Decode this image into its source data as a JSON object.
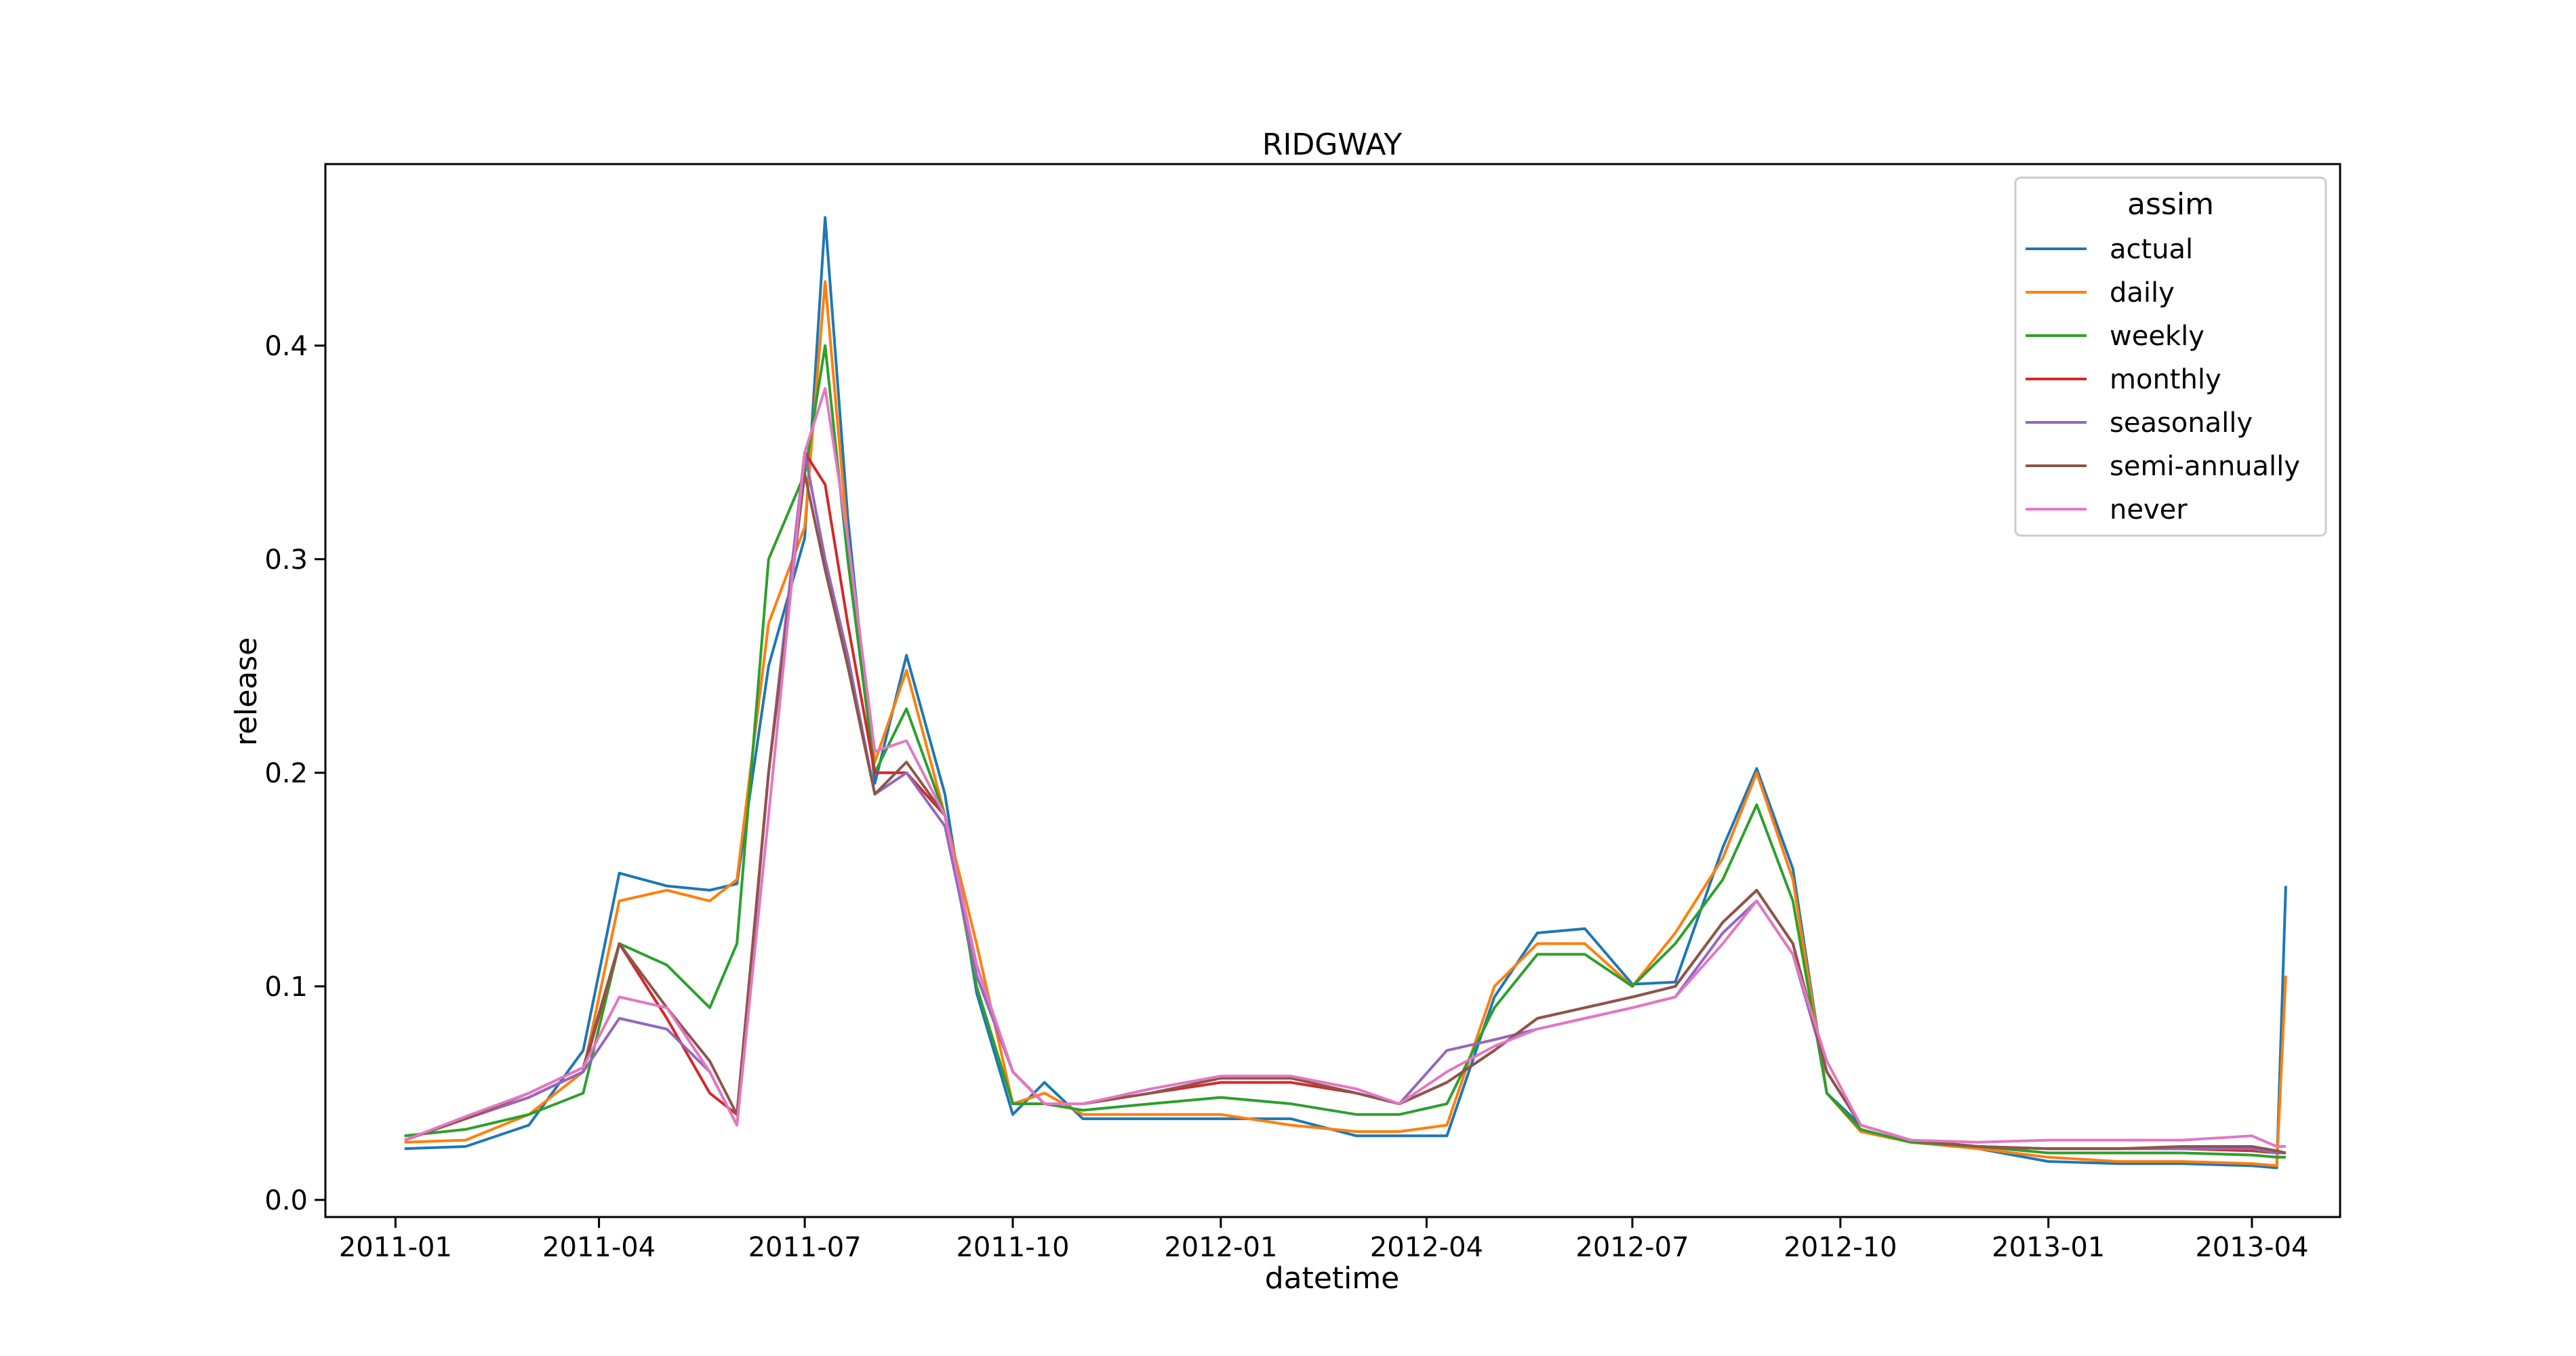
{
  "chart_data": {
    "type": "line",
    "title": "RIDGWAY",
    "xlabel": "datetime",
    "ylabel": "release",
    "xlim": [
      "2010-12-01",
      "2013-05-10"
    ],
    "ylim": [
      -0.008,
      0.485
    ],
    "x_ticks": [
      "2011-01",
      "2011-04",
      "2011-07",
      "2011-10",
      "2012-01",
      "2012-04",
      "2012-07",
      "2012-10",
      "2013-01",
      "2013-04"
    ],
    "y_ticks": [
      "0.0",
      "0.1",
      "0.2",
      "0.3",
      "0.4"
    ],
    "grid": false,
    "legend": {
      "title": "assim",
      "position": "top-right"
    },
    "x": [
      "2011-01-05",
      "2011-02-01",
      "2011-03-01",
      "2011-03-25",
      "2011-04-10",
      "2011-05-01",
      "2011-05-20",
      "2011-06-01",
      "2011-06-15",
      "2011-07-01",
      "2011-07-10",
      "2011-07-20",
      "2011-08-01",
      "2011-08-15",
      "2011-09-01",
      "2011-09-15",
      "2011-10-01",
      "2011-10-15",
      "2011-11-01",
      "2011-12-01",
      "2012-01-01",
      "2012-02-01",
      "2012-03-01",
      "2012-03-20",
      "2012-04-10",
      "2012-05-01",
      "2012-05-20",
      "2012-06-10",
      "2012-07-01",
      "2012-07-20",
      "2012-08-10",
      "2012-08-25",
      "2012-09-10",
      "2012-09-25",
      "2012-10-10",
      "2012-11-01",
      "2012-12-01",
      "2013-01-01",
      "2013-02-01",
      "2013-03-01",
      "2013-04-01",
      "2013-04-12",
      "2013-04-16"
    ],
    "series": [
      {
        "name": "actual",
        "color": "#1f77b4",
        "values": [
          0.024,
          0.025,
          0.035,
          0.07,
          0.153,
          0.147,
          0.145,
          0.148,
          0.25,
          0.31,
          0.46,
          0.32,
          0.195,
          0.255,
          0.19,
          0.097,
          0.04,
          0.055,
          0.038,
          0.038,
          0.038,
          0.038,
          0.03,
          0.03,
          0.03,
          0.095,
          0.125,
          0.127,
          0.101,
          0.102,
          0.165,
          0.202,
          0.155,
          0.05,
          0.035,
          0.028,
          0.024,
          0.018,
          0.017,
          0.017,
          0.016,
          0.015,
          0.147
        ]
      },
      {
        "name": "daily",
        "color": "#ff7f0e",
        "values": [
          0.027,
          0.028,
          0.04,
          0.06,
          0.14,
          0.145,
          0.14,
          0.15,
          0.27,
          0.315,
          0.43,
          0.31,
          0.205,
          0.248,
          0.18,
          0.12,
          0.045,
          0.05,
          0.04,
          0.04,
          0.04,
          0.035,
          0.032,
          0.032,
          0.035,
          0.1,
          0.12,
          0.12,
          0.1,
          0.125,
          0.16,
          0.2,
          0.15,
          0.05,
          0.032,
          0.027,
          0.024,
          0.02,
          0.018,
          0.018,
          0.017,
          0.016,
          0.105
        ]
      },
      {
        "name": "weekly",
        "color": "#2ca02c",
        "values": [
          0.03,
          0.033,
          0.04,
          0.05,
          0.12,
          0.11,
          0.09,
          0.12,
          0.3,
          0.34,
          0.4,
          0.3,
          0.2,
          0.23,
          0.18,
          0.1,
          0.045,
          0.045,
          0.042,
          0.045,
          0.048,
          0.045,
          0.04,
          0.04,
          0.045,
          0.09,
          0.115,
          0.115,
          0.1,
          0.12,
          0.15,
          0.185,
          0.14,
          0.05,
          0.033,
          0.027,
          0.025,
          0.022,
          0.022,
          0.022,
          0.021,
          0.02,
          0.02
        ]
      },
      {
        "name": "monthly",
        "color": "#d62728",
        "values": [
          0.028,
          0.038,
          0.048,
          0.06,
          0.12,
          0.085,
          0.05,
          0.04,
          0.2,
          0.35,
          0.335,
          0.27,
          0.2,
          0.2,
          0.18,
          0.11,
          0.06,
          0.045,
          0.045,
          0.05,
          0.055,
          0.055,
          0.05,
          0.045,
          0.055,
          0.07,
          0.085,
          0.09,
          0.095,
          0.1,
          0.13,
          0.145,
          0.12,
          0.06,
          0.035,
          0.028,
          0.025,
          0.024,
          0.024,
          0.024,
          0.023,
          0.022,
          0.022
        ]
      },
      {
        "name": "seasonally",
        "color": "#9467bd",
        "values": [
          0.028,
          0.038,
          0.048,
          0.06,
          0.085,
          0.08,
          0.06,
          0.035,
          0.2,
          0.35,
          0.3,
          0.255,
          0.19,
          0.2,
          0.175,
          0.105,
          0.06,
          0.045,
          0.045,
          0.05,
          0.057,
          0.057,
          0.05,
          0.045,
          0.07,
          0.075,
          0.08,
          0.085,
          0.09,
          0.095,
          0.125,
          0.14,
          0.115,
          0.06,
          0.035,
          0.028,
          0.025,
          0.024,
          0.024,
          0.024,
          0.024,
          0.022,
          0.022
        ]
      },
      {
        "name": "semi-annually",
        "color": "#8c564b",
        "values": [
          0.028,
          0.038,
          0.05,
          0.062,
          0.12,
          0.09,
          0.065,
          0.04,
          0.2,
          0.34,
          0.295,
          0.25,
          0.19,
          0.205,
          0.18,
          0.11,
          0.06,
          0.045,
          0.045,
          0.05,
          0.057,
          0.057,
          0.05,
          0.045,
          0.055,
          0.07,
          0.085,
          0.09,
          0.095,
          0.1,
          0.13,
          0.145,
          0.12,
          0.06,
          0.035,
          0.028,
          0.025,
          0.024,
          0.024,
          0.025,
          0.025,
          0.023,
          0.022
        ]
      },
      {
        "name": "never",
        "color": "#e377c2",
        "values": [
          0.028,
          0.039,
          0.05,
          0.062,
          0.095,
          0.09,
          0.06,
          0.035,
          0.18,
          0.35,
          0.38,
          0.31,
          0.21,
          0.215,
          0.18,
          0.11,
          0.06,
          0.045,
          0.045,
          0.052,
          0.058,
          0.058,
          0.052,
          0.045,
          0.06,
          0.072,
          0.08,
          0.085,
          0.09,
          0.095,
          0.12,
          0.14,
          0.115,
          0.065,
          0.035,
          0.028,
          0.027,
          0.028,
          0.028,
          0.028,
          0.03,
          0.025,
          0.025
        ]
      }
    ]
  }
}
